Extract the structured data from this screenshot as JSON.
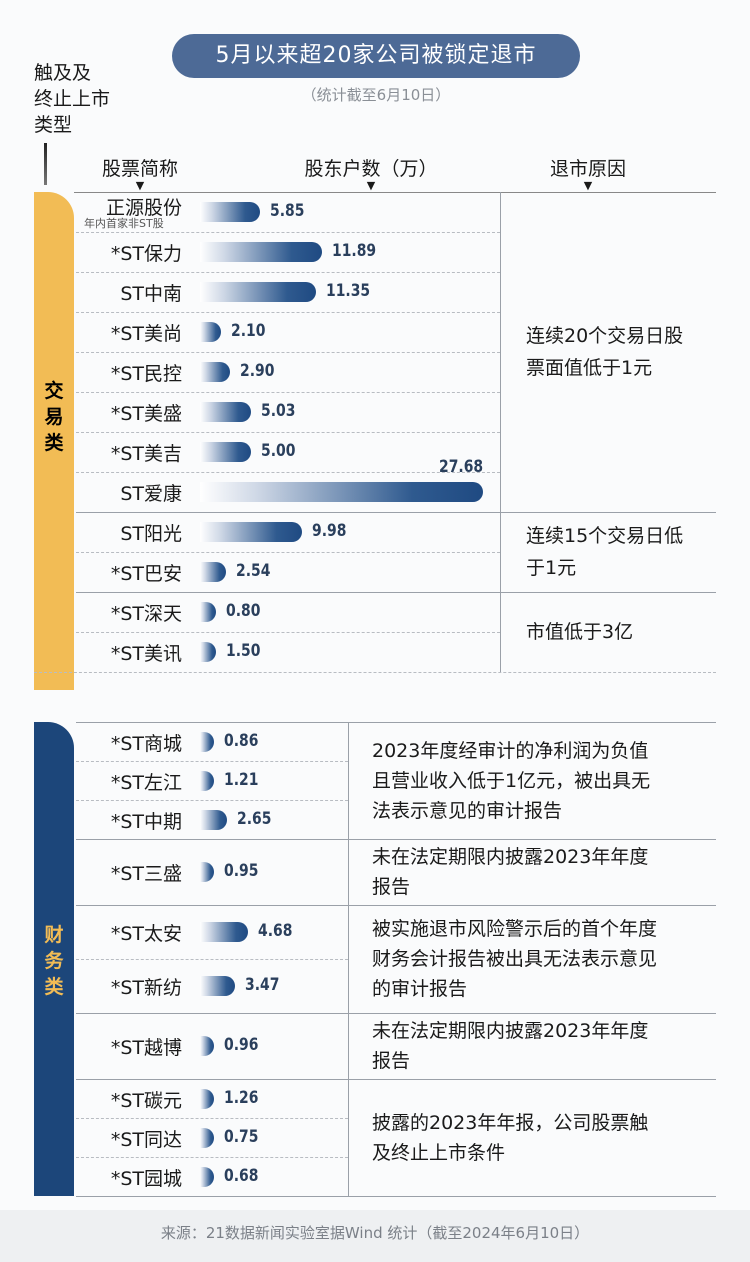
{
  "header": {
    "title": "5月以来超20家公司被锁定退市",
    "subtitle": "（统计截至6月10日）",
    "type_label": [
      "触及及",
      "终止上市",
      "类型"
    ],
    "columns": [
      "股票简称",
      "股东户数（万）",
      "退市原因"
    ]
  },
  "groups": [
    {
      "name": "交易类",
      "rows": [
        {
          "name": "正源股份",
          "note": "年内首家非ST股",
          "value": "5.85"
        },
        {
          "name": "*ST保力",
          "value": "11.89"
        },
        {
          "name": "ST中南",
          "value": "11.35"
        },
        {
          "name": "*ST美尚",
          "value": "2.10"
        },
        {
          "name": "*ST民控",
          "value": "2.90"
        },
        {
          "name": "*ST美盛",
          "value": "5.03"
        },
        {
          "name": "*ST美吉",
          "value": "5.00"
        },
        {
          "name": "ST爱康",
          "value": "27.68"
        },
        {
          "name": "ST阳光",
          "value": "9.98"
        },
        {
          "name": "*ST巴安",
          "value": "2.54"
        },
        {
          "name": "*ST深天",
          "value": "0.80"
        },
        {
          "name": "*ST美讯",
          "value": "1.50"
        }
      ],
      "reasons": [
        {
          "lines": [
            "连续20个交易日股",
            "票面值低于1元"
          ]
        },
        {
          "lines": [
            "连续15个交易日低",
            "于1元"
          ]
        },
        {
          "lines": [
            "市值低于3亿"
          ]
        }
      ]
    },
    {
      "name": "财务类",
      "rows": [
        {
          "name": "*ST商城",
          "value": "0.86"
        },
        {
          "name": "*ST左江",
          "value": "1.21"
        },
        {
          "name": "*ST中期",
          "value": "2.65"
        },
        {
          "name": "*ST三盛",
          "value": "0.95"
        },
        {
          "name": "*ST太安",
          "value": "4.68"
        },
        {
          "name": "*ST新纺",
          "value": "3.47"
        },
        {
          "name": "*ST越博",
          "value": "0.96"
        },
        {
          "name": "*ST碳元",
          "value": "1.26"
        },
        {
          "name": "*ST同达",
          "value": "0.75"
        },
        {
          "name": "*ST园城",
          "value": "0.68"
        }
      ],
      "reasons": [
        {
          "lines": [
            "2023年度经审计的净利润为负值",
            "且营业收入低于1亿元，被出具无",
            "法表示意见的审计报告"
          ]
        },
        {
          "lines": [
            "未在法定期限内披露2023年年度",
            "报告"
          ]
        },
        {
          "lines": [
            "被实施退市风险警示后的首个年度",
            "财务会计报告被出具无法表示意见",
            "的审计报告"
          ]
        },
        {
          "lines": [
            "未在法定期限内披露2023年年度",
            "报告"
          ]
        },
        {
          "lines": [
            "披露的2023年年报，公司股票触",
            "及终止上市条件"
          ]
        }
      ]
    }
  ],
  "source": "来源：21数据新闻实验室据Wind 统计（截至2024年6月10日）",
  "chart_data": {
    "type": "bar",
    "title": "5月以来超20家公司被锁定退市",
    "xlabel": "股东户数（万）",
    "categories": [
      "正源股份",
      "*ST保力",
      "ST中南",
      "*ST美尚",
      "*ST民控",
      "*ST美盛",
      "*ST美吉",
      "ST爱康",
      "ST阳光",
      "*ST巴安",
      "*ST深天",
      "*ST美讯",
      "*ST商城",
      "*ST左江",
      "*ST中期",
      "*ST三盛",
      "*ST太安",
      "*ST新纺",
      "*ST越博",
      "*ST碳元",
      "*ST同达",
      "*ST园城"
    ],
    "values": [
      5.85,
      11.89,
      11.35,
      2.1,
      2.9,
      5.03,
      5.0,
      27.68,
      9.98,
      2.54,
      0.8,
      1.5,
      0.86,
      1.21,
      2.65,
      0.95,
      4.68,
      3.47,
      0.96,
      1.26,
      0.75,
      0.68
    ],
    "xlim": [
      0,
      27.68
    ]
  }
}
